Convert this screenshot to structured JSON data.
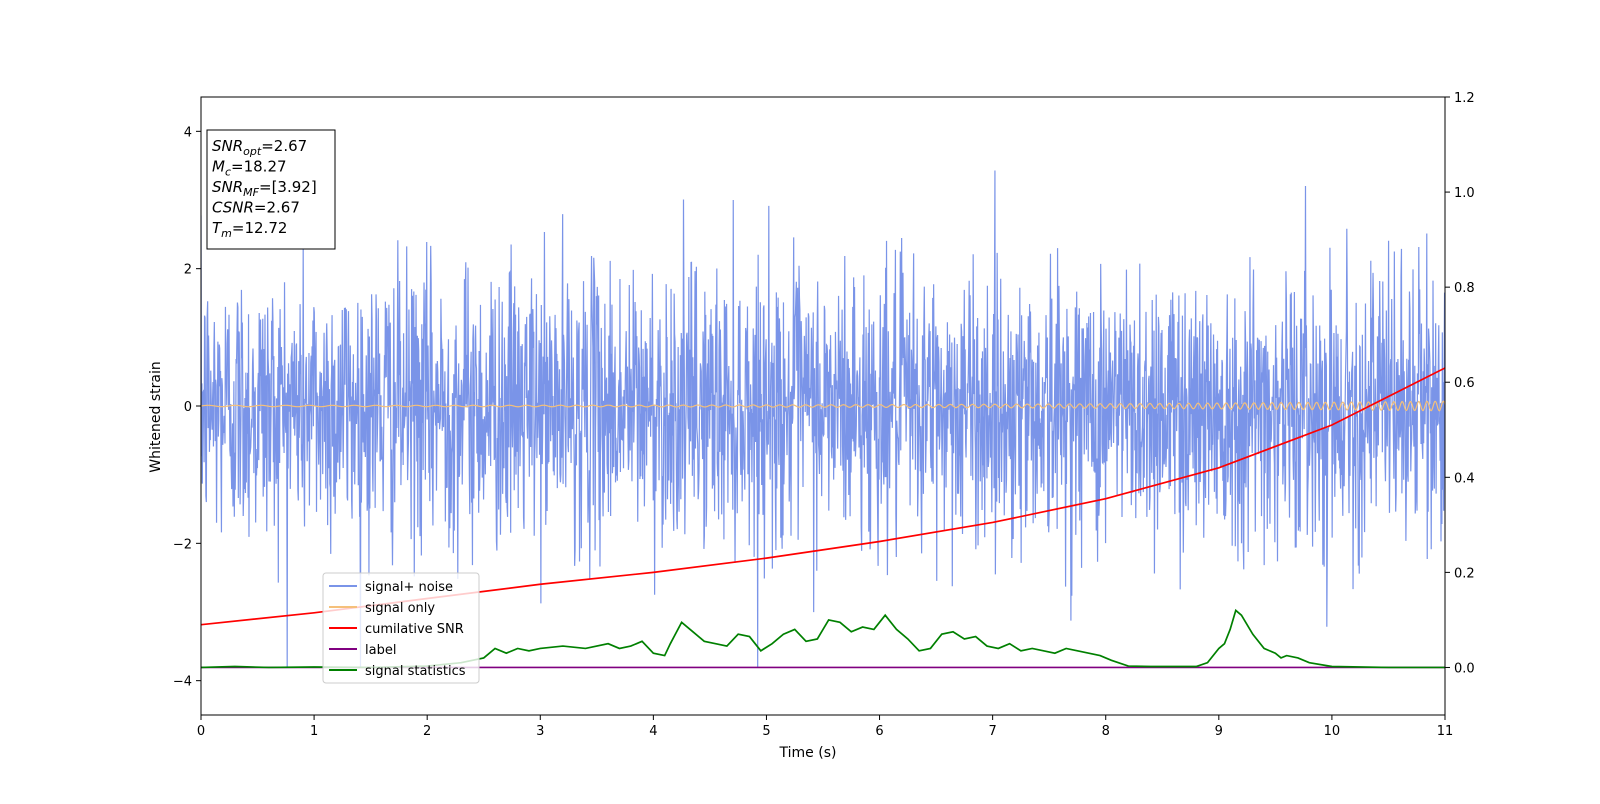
{
  "chart_data": {
    "type": "line",
    "xlabel": "Time (s)",
    "ylabel": "Whitened strain",
    "xlim": [
      0,
      11
    ],
    "ylim_left": [
      -4.5,
      4.5
    ],
    "ylim_right": [
      -0.1,
      1.2
    ],
    "x_ticks": [
      "0",
      "1",
      "2",
      "3",
      "4",
      "5",
      "6",
      "7",
      "8",
      "9",
      "10",
      "11"
    ],
    "y_ticks_left": [
      "−4",
      "−2",
      "0",
      "2",
      "4"
    ],
    "y_ticks_right": [
      "0.0",
      "0.2",
      "0.4",
      "0.6",
      "0.8",
      "1.0",
      "1.2"
    ],
    "grid": false,
    "legend_position": "lower-left",
    "info_box": {
      "lines": [
        {
          "base": "SNR",
          "sub": "opt",
          "rest": "=2.67"
        },
        {
          "base": "M",
          "sub": "c",
          "rest": "=18.27"
        },
        {
          "base": "SNR",
          "sub": "MF",
          "rest": "=[3.92]"
        },
        {
          "base": "CSNR",
          "sub": "",
          "rest": "=2.67"
        },
        {
          "base": "T",
          "sub": "m",
          "rest": "=12.72"
        }
      ]
    },
    "series": [
      {
        "name": "signal+ noise",
        "color": "#7a94e8",
        "axis": "left",
        "kind": "noise",
        "x_range": [
          0,
          11
        ],
        "mean": 0,
        "std": 1.0,
        "max_observed": 4.15,
        "min_observed": -3.8
      },
      {
        "name": "signal only",
        "color": "#f5c07a",
        "axis": "left",
        "kind": "chirp",
        "x_range": [
          0,
          11
        ],
        "amplitude_start": 0.01,
        "amplitude_end": 0.07
      },
      {
        "name": "cumilative SNR",
        "color": "#ff0000",
        "axis": "right",
        "x": [
          0,
          1,
          2,
          3,
          4,
          5,
          6,
          7,
          8,
          9,
          10,
          10.5,
          11
        ],
        "y": [
          0.09,
          0.115,
          0.145,
          0.175,
          0.2,
          0.23,
          0.265,
          0.305,
          0.355,
          0.42,
          0.51,
          0.57,
          0.63
        ]
      },
      {
        "name": "label",
        "color": "#800080",
        "axis": "right",
        "x": [
          0,
          11
        ],
        "y": [
          0.0,
          0.0
        ]
      },
      {
        "name": "signal statistics",
        "color": "#008000",
        "axis": "right",
        "x": [
          0,
          0.3,
          0.6,
          1,
          1.5,
          2,
          2.3,
          2.5,
          2.6,
          2.7,
          2.8,
          2.9,
          3.0,
          3.2,
          3.4,
          3.6,
          3.7,
          3.8,
          3.9,
          4.0,
          4.1,
          4.15,
          4.25,
          4.35,
          4.45,
          4.55,
          4.65,
          4.75,
          4.85,
          4.95,
          5.05,
          5.15,
          5.25,
          5.35,
          5.45,
          5.55,
          5.65,
          5.75,
          5.85,
          5.95,
          6.05,
          6.15,
          6.25,
          6.35,
          6.45,
          6.55,
          6.65,
          6.75,
          6.85,
          6.95,
          7.05,
          7.15,
          7.25,
          7.35,
          7.45,
          7.55,
          7.65,
          7.75,
          7.85,
          7.95,
          8.05,
          8.2,
          8.4,
          8.6,
          8.8,
          8.9,
          9.0,
          9.05,
          9.1,
          9.15,
          9.2,
          9.3,
          9.4,
          9.5,
          9.55,
          9.6,
          9.7,
          9.8,
          10.0,
          10.5,
          11
        ],
        "y": [
          0.0,
          0.002,
          0.0,
          0.001,
          0.0,
          0.003,
          0.01,
          0.02,
          0.04,
          0.03,
          0.04,
          0.035,
          0.04,
          0.045,
          0.04,
          0.05,
          0.04,
          0.045,
          0.055,
          0.03,
          0.025,
          0.05,
          0.095,
          0.075,
          0.055,
          0.05,
          0.045,
          0.07,
          0.065,
          0.035,
          0.05,
          0.07,
          0.08,
          0.055,
          0.06,
          0.1,
          0.095,
          0.075,
          0.085,
          0.08,
          0.11,
          0.08,
          0.06,
          0.035,
          0.04,
          0.07,
          0.075,
          0.06,
          0.065,
          0.045,
          0.04,
          0.05,
          0.035,
          0.04,
          0.035,
          0.03,
          0.04,
          0.035,
          0.03,
          0.025,
          0.015,
          0.003,
          0.002,
          0.002,
          0.002,
          0.01,
          0.04,
          0.05,
          0.08,
          0.12,
          0.11,
          0.07,
          0.04,
          0.03,
          0.02,
          0.025,
          0.02,
          0.01,
          0.002,
          0.0,
          0.0
        ]
      }
    ]
  }
}
